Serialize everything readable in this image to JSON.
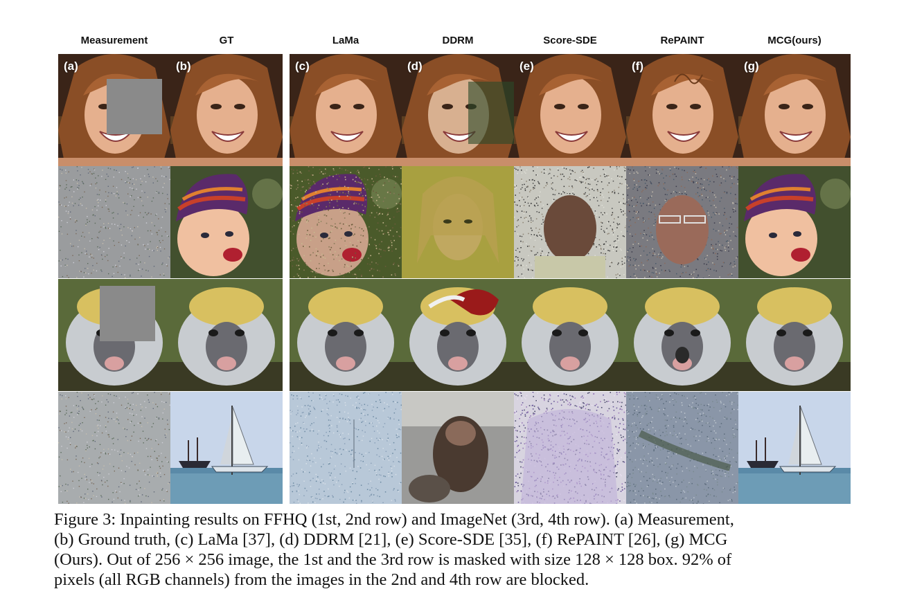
{
  "columns": [
    {
      "label": "Measurement",
      "panel": "(a)"
    },
    {
      "label": "GT",
      "panel": "(b)"
    },
    {
      "label": "LaMa",
      "panel": "(c)"
    },
    {
      "label": "DDRM",
      "panel": "(d)"
    },
    {
      "label": "Score-SDE",
      "panel": "(e)"
    },
    {
      "label": "RePAINT",
      "panel": "(f)"
    },
    {
      "label": "MCG(ours)",
      "panel": "(g)"
    }
  ],
  "caption": {
    "lines": [
      "Figure 3: Inpainting results on FFHQ (1st, 2nd row) and ImageNet (3rd, 4th row). (a) Measurement,",
      "(b) Ground truth, (c) LaMa [37], (d) DDRM [21], (e) Score-SDE [35], (f) RePAINT [26], (g) MCG",
      "(Ours). Out of 256 × 256 image, the 1st and the 3rd row is masked with size 128 × 128 box. 92% of",
      "pixels (all RGB channels) from the images in the 2nd and 4th row are blocked."
    ]
  }
}
